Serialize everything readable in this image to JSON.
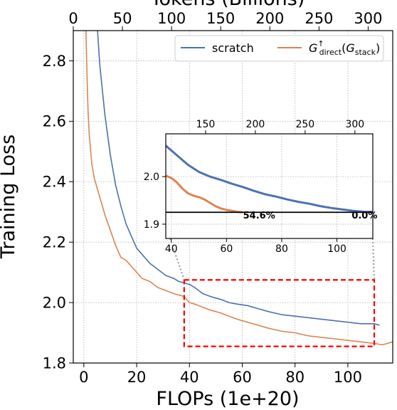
{
  "chart_data": [
    {
      "type": "line",
      "title": "",
      "xlabel": "FLOPs (1e+20)",
      "ylabel": "Training Loss",
      "top_xlabel": "Tokens (Billions)",
      "xlim": [
        -4,
        117
      ],
      "ylim": [
        1.8,
        2.9
      ],
      "top_xlim": [
        0,
        325
      ],
      "xticks": [
        0,
        20,
        40,
        60,
        80,
        100
      ],
      "yticks": [
        1.8,
        2.0,
        2.2,
        2.4,
        2.6,
        2.8
      ],
      "top_xticks": [
        0,
        50,
        100,
        150,
        200,
        250,
        300
      ],
      "grid": true,
      "legend_position": "top-right",
      "series": [
        {
          "name": "scratch",
          "color": "#4C72B0",
          "x": [
            5.2,
            6,
            8,
            10,
            12,
            14,
            16,
            18,
            20,
            22,
            25,
            28,
            31,
            34,
            36,
            38,
            40,
            42,
            45,
            48,
            52,
            55,
            58,
            62,
            66,
            70,
            75,
            80,
            85,
            90,
            95,
            100,
            105,
            110,
            112
          ],
          "y": [
            2.9,
            2.79,
            2.62,
            2.49,
            2.39,
            2.32,
            2.26,
            2.22,
            2.18,
            2.16,
            2.13,
            2.11,
            2.09,
            2.08,
            2.07,
            2.065,
            2.06,
            2.05,
            2.03,
            2.02,
            2.01,
            2.0,
            1.995,
            1.99,
            1.98,
            1.97,
            1.96,
            1.955,
            1.95,
            1.945,
            1.94,
            1.935,
            1.93,
            1.93,
            1.925
          ]
        },
        {
          "name": "G_direct^↑(G_stack)",
          "color": "#DD8452",
          "x": [
            0.8,
            1.0,
            1.3,
            1.6,
            2,
            3,
            4,
            6,
            8,
            10,
            12,
            14,
            16,
            18,
            20,
            22,
            25,
            28,
            31,
            34,
            38,
            40,
            42,
            45,
            48,
            52,
            55,
            58,
            62,
            66,
            70,
            75,
            80,
            85,
            90,
            95,
            100,
            105,
            110,
            113,
            117
          ],
          "y": [
            2.9,
            2.82,
            2.72,
            2.63,
            2.56,
            2.46,
            2.41,
            2.35,
            2.29,
            2.24,
            2.19,
            2.15,
            2.14,
            2.12,
            2.1,
            2.08,
            2.07,
            2.05,
            2.04,
            2.03,
            2.02,
            2.0,
            1.995,
            1.985,
            1.975,
            1.965,
            1.955,
            1.945,
            1.935,
            1.925,
            1.915,
            1.905,
            1.9,
            1.89,
            1.885,
            1.88,
            1.875,
            1.87,
            1.865,
            1.86,
            1.87
          ]
        }
      ]
    },
    {
      "type": "line",
      "title": "",
      "xlabel": "",
      "ylabel": "",
      "xlim": [
        38,
        113
      ],
      "ylim": [
        1.87,
        2.09
      ],
      "top_xlim": [
        110,
        318
      ],
      "xticks": [
        40,
        60,
        80,
        100
      ],
      "yticks": [
        1.9,
        2.0
      ],
      "top_xticks": [
        150,
        200,
        250,
        300
      ],
      "grid": true,
      "reference_line_y": 1.925,
      "annotations": [
        {
          "text": "54.6%",
          "x": 66,
          "y": 1.918
        },
        {
          "text": "0.0%",
          "x": 110,
          "y": 1.918
        }
      ],
      "series": [
        {
          "name": "scratch",
          "color": "#4C72B0",
          "x": [
            38,
            40,
            43,
            46,
            50,
            54,
            58,
            62,
            66,
            70,
            74,
            78,
            82,
            86,
            90,
            94,
            98,
            102,
            106,
            110,
            113
          ],
          "y": [
            2.065,
            2.055,
            2.04,
            2.025,
            2.01,
            2.0,
            1.993,
            1.985,
            1.978,
            1.97,
            1.963,
            1.958,
            1.952,
            1.947,
            1.943,
            1.938,
            1.934,
            1.931,
            1.928,
            1.926,
            1.926
          ]
        },
        {
          "name": "G_direct^↑(G_stack)",
          "color": "#DD8452",
          "x": [
            38,
            40,
            42,
            44,
            46,
            48,
            50,
            52,
            54,
            56,
            58,
            60,
            62,
            64,
            66
          ],
          "y": [
            2.002,
            1.997,
            1.988,
            1.975,
            1.965,
            1.96,
            1.957,
            1.952,
            1.945,
            1.938,
            1.933,
            1.93,
            1.928,
            1.926,
            1.925
          ]
        }
      ]
    }
  ],
  "legend": {
    "entries": [
      {
        "label": "scratch",
        "color": "#4C72B0"
      },
      {
        "label_main": "G",
        "label_sub": "direct",
        "label_sup": "↑",
        "label_paren_open": "(",
        "label_paren_main": "G",
        "label_paren_sub": "stack",
        "label_paren_close": ")",
        "color": "#DD8452"
      }
    ]
  },
  "highlight_box_color": "#FF0000"
}
